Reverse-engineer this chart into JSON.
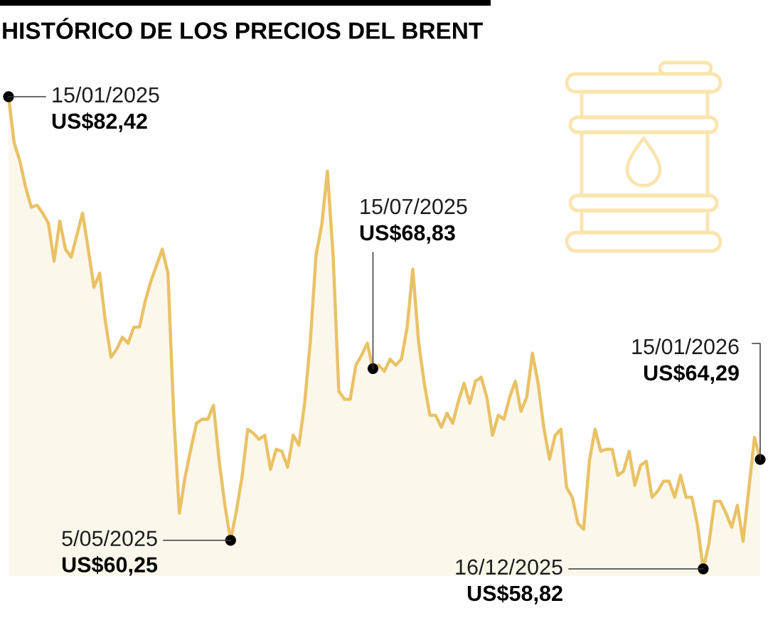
{
  "chart_data": {
    "type": "area",
    "title": "HISTÓRICO DE LOS PRECIOS DEL BRENT",
    "tick_labels": false,
    "categories": [
      null,
      null,
      null,
      null,
      null,
      null,
      null,
      null,
      null,
      null,
      null,
      null,
      null,
      null,
      null,
      null,
      null,
      null,
      null,
      null,
      null,
      null,
      null,
      null,
      null,
      null,
      null,
      null,
      null,
      null,
      null,
      null,
      null,
      null,
      null,
      null,
      null,
      null,
      null,
      null,
      null,
      null,
      null,
      null,
      null,
      null,
      null,
      null,
      null,
      null,
      null,
      null,
      null,
      null,
      null,
      null,
      null,
      null,
      null,
      null,
      null,
      null,
      null,
      null,
      null,
      null,
      null,
      null,
      null,
      null,
      null,
      null,
      null,
      null,
      null,
      null,
      null,
      null,
      null,
      null,
      null,
      null,
      null,
      null,
      null,
      null,
      null,
      null,
      null,
      null,
      null,
      null,
      null,
      null,
      null,
      null,
      null,
      null,
      null,
      null,
      null,
      null,
      null,
      null,
      null,
      null,
      null,
      null,
      null,
      null,
      null,
      null,
      null,
      null,
      null,
      null,
      null,
      null,
      null,
      null,
      null,
      null,
      null,
      null,
      null,
      null,
      null,
      null,
      null,
      null,
      null,
      null,
      null
    ],
    "series": [
      {
        "color": "#e9c266",
        "values": [
          82.42,
          80.1,
          79.2,
          77.9,
          76.9,
          77.0,
          76.6,
          76.1,
          74.2,
          76.2,
          74.8,
          74.4,
          75.5,
          76.6,
          74.8,
          72.9,
          73.6,
          71.2,
          69.4,
          69.8,
          70.4,
          70.1,
          70.9,
          70.9,
          72.2,
          73.2,
          74.0,
          74.8,
          73.6,
          66.6,
          61.6,
          63.4,
          64.8,
          66.1,
          66.3,
          66.3,
          67.0,
          64.2,
          62.0,
          60.25,
          61.7,
          63.4,
          65.8,
          65.6,
          65.3,
          65.5,
          63.8,
          64.8,
          64.7,
          63.9,
          65.5,
          65.0,
          67.1,
          70.2,
          74.5,
          76.0,
          78.7,
          74.5,
          67.7,
          67.3,
          67.3,
          69.0,
          69.5,
          70.1,
          68.83,
          69.0,
          68.7,
          69.3,
          69.0,
          69.3,
          70.9,
          73.8,
          70.2,
          68.1,
          66.5,
          66.5,
          65.9,
          66.6,
          66.1,
          67.2,
          68.1,
          67.1,
          68.2,
          68.4,
          67.4,
          65.5,
          66.5,
          66.3,
          67.4,
          68.2,
          66.7,
          67.4,
          69.6,
          68.1,
          65.9,
          64.3,
          65.5,
          65.8,
          62.9,
          62.4,
          61.1,
          60.8,
          64.2,
          65.8,
          64.7,
          64.8,
          64.8,
          63.5,
          63.7,
          64.7,
          63.0,
          64.0,
          64.2,
          62.4,
          62.7,
          63.2,
          63.2,
          62.4,
          63.5,
          62.4,
          62.4,
          61.0,
          58.82,
          60.1,
          62.2,
          62.2,
          61.6,
          60.9,
          62.0,
          60.2,
          62.8,
          65.4,
          64.29
        ],
        "value_labels": [
          "15/01/2025\nUS$82,42",
          null,
          null,
          null,
          null,
          null,
          null,
          null,
          null,
          null,
          null,
          null,
          null,
          null,
          null,
          null,
          null,
          null,
          null,
          null,
          null,
          null,
          null,
          null,
          null,
          null,
          null,
          null,
          null,
          null,
          null,
          null,
          null,
          null,
          null,
          null,
          null,
          null,
          null,
          "5/05/2025\nUS$60,25",
          null,
          null,
          null,
          null,
          null,
          null,
          null,
          null,
          null,
          null,
          null,
          null,
          null,
          null,
          null,
          null,
          null,
          null,
          null,
          null,
          null,
          null,
          null,
          null,
          "15/07/2025\nUS$68,83",
          null,
          null,
          null,
          null,
          null,
          null,
          null,
          null,
          null,
          null,
          null,
          null,
          null,
          null,
          null,
          null,
          null,
          null,
          null,
          null,
          null,
          null,
          null,
          null,
          null,
          null,
          null,
          null,
          null,
          null,
          null,
          null,
          null,
          null,
          null,
          null,
          null,
          null,
          null,
          null,
          null,
          null,
          null,
          null,
          null,
          null,
          null,
          null,
          null,
          null,
          null,
          null,
          null,
          null,
          null,
          null,
          null,
          "16/12/2025\nUS$58,82",
          null,
          null,
          null,
          null,
          null,
          null,
          null,
          null,
          null,
          "15/01/2026\nUS$64,29"
        ]
      }
    ]
  }
}
